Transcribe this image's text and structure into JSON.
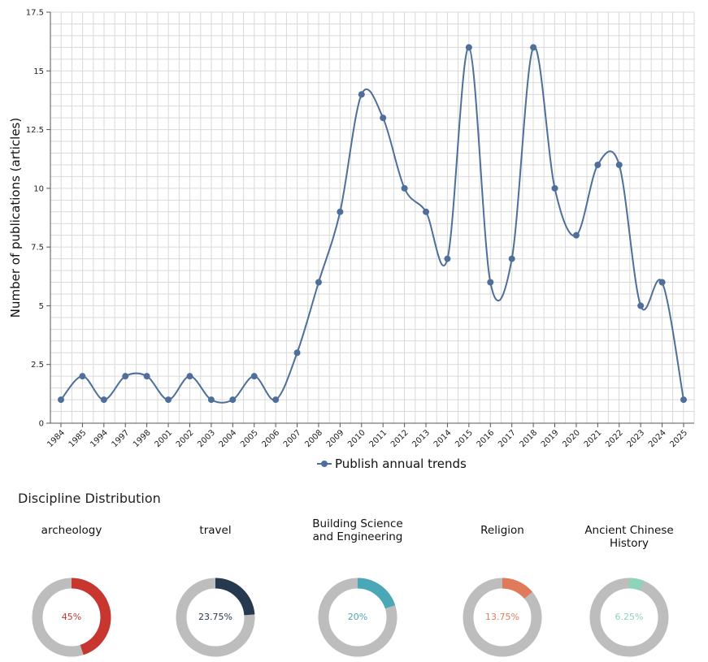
{
  "chart_data": [
    {
      "type": "line",
      "ylabel": "Number of publications (articles)",
      "xlabel": "",
      "categories": [
        "1984",
        "1985",
        "1994",
        "1997",
        "1998",
        "2001",
        "2002",
        "2003",
        "2004",
        "2005",
        "2006",
        "2007",
        "2008",
        "2009",
        "2010",
        "2011",
        "2012",
        "2013",
        "2014",
        "2015",
        "2016",
        "2017",
        "2018",
        "2019",
        "2020",
        "2021",
        "2022",
        "2023",
        "2024",
        "2025"
      ],
      "series": [
        {
          "name": "Publish annual trends",
          "values": [
            1,
            2,
            1,
            2,
            2,
            1,
            2,
            1,
            1,
            2,
            1,
            3,
            6,
            9,
            14,
            13,
            10,
            9,
            7,
            16,
            6,
            7,
            16,
            10,
            8,
            11,
            11,
            5,
            6,
            1
          ],
          "color": "#4e6f9a"
        }
      ],
      "ylim": [
        0,
        17.5
      ],
      "yticks": [
        "0",
        "2.5",
        "5",
        "7.5",
        "10",
        "12.5",
        "15",
        "17.5"
      ],
      "grid": true,
      "smooth": true,
      "legend": "bottom-center"
    },
    {
      "type": "pie",
      "title": "Discipline Distribution",
      "slices": [
        {
          "label": "archeology",
          "value": 45,
          "display": "45%",
          "color": "#c8372f"
        },
        {
          "label": "travel",
          "value": 23.75,
          "display": "23.75%",
          "color": "#26394f"
        },
        {
          "label": "Building Science and Engineering",
          "value": 20,
          "display": "20%",
          "color": "#4aa8b6"
        },
        {
          "label": "Religion",
          "value": 13.75,
          "display": "13.75%",
          "color": "#e07a5a"
        },
        {
          "label": "Ancient Chinese History",
          "value": 6.25,
          "display": "6.25%",
          "color": "#8fd3b8"
        }
      ],
      "remainder_color": "#bdbdbd"
    }
  ]
}
